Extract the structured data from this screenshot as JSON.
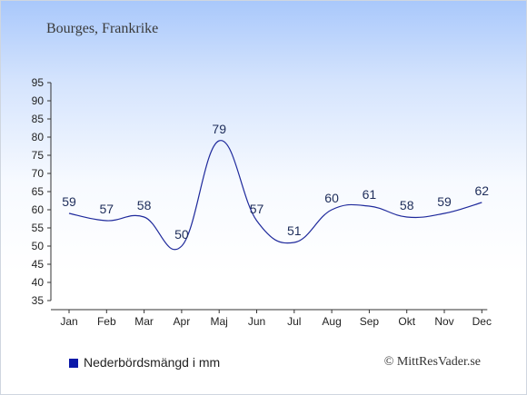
{
  "page": {
    "title": "Bourges, Frankrike"
  },
  "legend": {
    "label": "Nederbördsmängd i mm",
    "color": "#0a18a8"
  },
  "copyright": "© MittResVader.se",
  "chart_data": {
    "type": "line",
    "categories": [
      "Jan",
      "Feb",
      "Mar",
      "Apr",
      "Maj",
      "Jun",
      "Jul",
      "Aug",
      "Sep",
      "Okt",
      "Nov",
      "Dec"
    ],
    "series": [
      {
        "name": "Nederbördsmängd i mm",
        "values": [
          59,
          57,
          58,
          50,
          79,
          57,
          51,
          60,
          61,
          58,
          59,
          62
        ],
        "color": "#1f2a9c"
      }
    ],
    "title": "Bourges, Frankrike",
    "xlabel": "",
    "ylabel": "",
    "ylim": [
      35,
      95
    ],
    "yticks": [
      35,
      40,
      45,
      50,
      55,
      60,
      65,
      70,
      75,
      80,
      85,
      90,
      95
    ],
    "grid": false,
    "legend_position": "bottom-left",
    "data_labels": true
  }
}
